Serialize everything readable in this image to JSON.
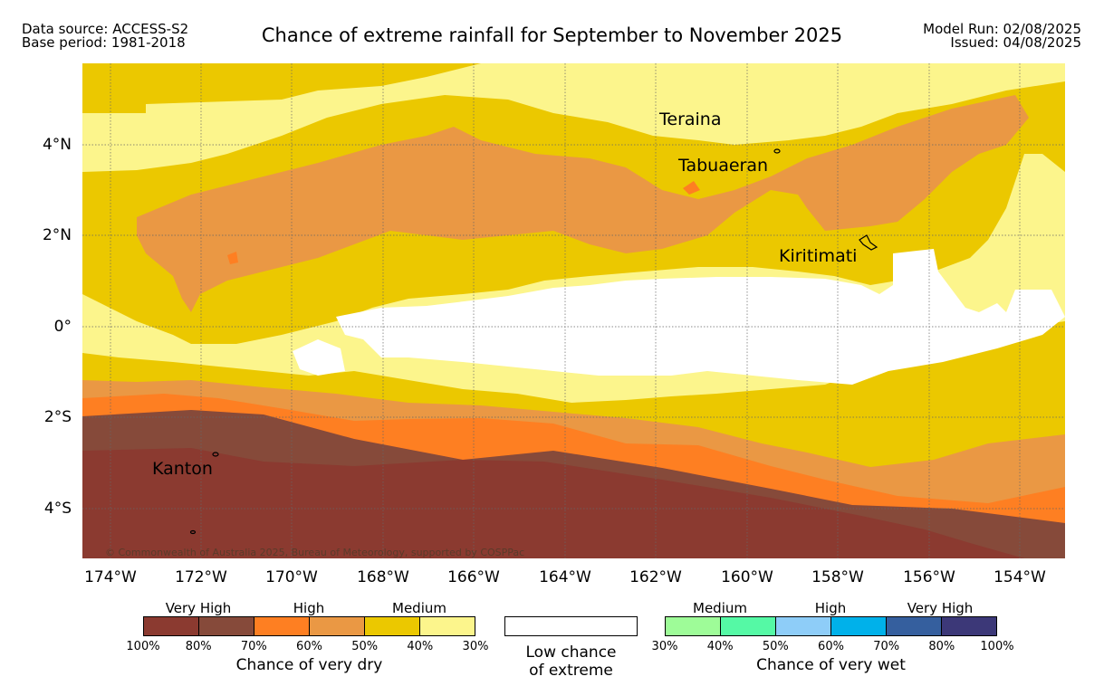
{
  "header": {
    "data_source": "Data source: ACCESS-S2",
    "base_period": "Base period: 1981-2018",
    "title": "Chance of extreme rainfall for September to November 2025",
    "model_run": "Model Run: 02/08/2025",
    "issued": "Issued: 04/08/2025"
  },
  "map": {
    "places": [
      "Teraina",
      "Tabuaeran",
      "Kiritimati",
      "Kanton"
    ],
    "y_ticks": [
      "4°N",
      "2°N",
      "0°",
      "2°S",
      "4°S"
    ],
    "x_ticks": [
      "174°W",
      "172°W",
      "170°W",
      "168°W",
      "166°W",
      "164°W",
      "162°W",
      "160°W",
      "158°W",
      "156°W",
      "154°W"
    ],
    "copyright": "© Commonwealth of Australia 2025, Bureau of Meteorology, supported by COSPPac"
  },
  "legend": {
    "dry": {
      "category_labels": [
        "Very High",
        "High",
        "Medium"
      ],
      "colors": [
        "#8b3a30",
        "#864a3a",
        "#fe7f22",
        "#ea9844",
        "#ebc800",
        "#fcf58c"
      ],
      "ticks": [
        "100%",
        "80%",
        "70%",
        "60%",
        "50%",
        "40%",
        "30%"
      ],
      "caption": "Chance of very dry"
    },
    "low": {
      "caption_line1": "Low chance",
      "caption_line2": "of extreme",
      "color": "#ffffff"
    },
    "wet": {
      "category_labels": [
        "Medium",
        "High",
        "Very High"
      ],
      "colors": [
        "#9efc98",
        "#55f9a5",
        "#8ecdf8",
        "#00b1ea",
        "#355f9e",
        "#3c3878"
      ],
      "ticks": [
        "30%",
        "40%",
        "50%",
        "60%",
        "70%",
        "80%",
        "100%"
      ],
      "caption": "Chance of very wet"
    }
  }
}
